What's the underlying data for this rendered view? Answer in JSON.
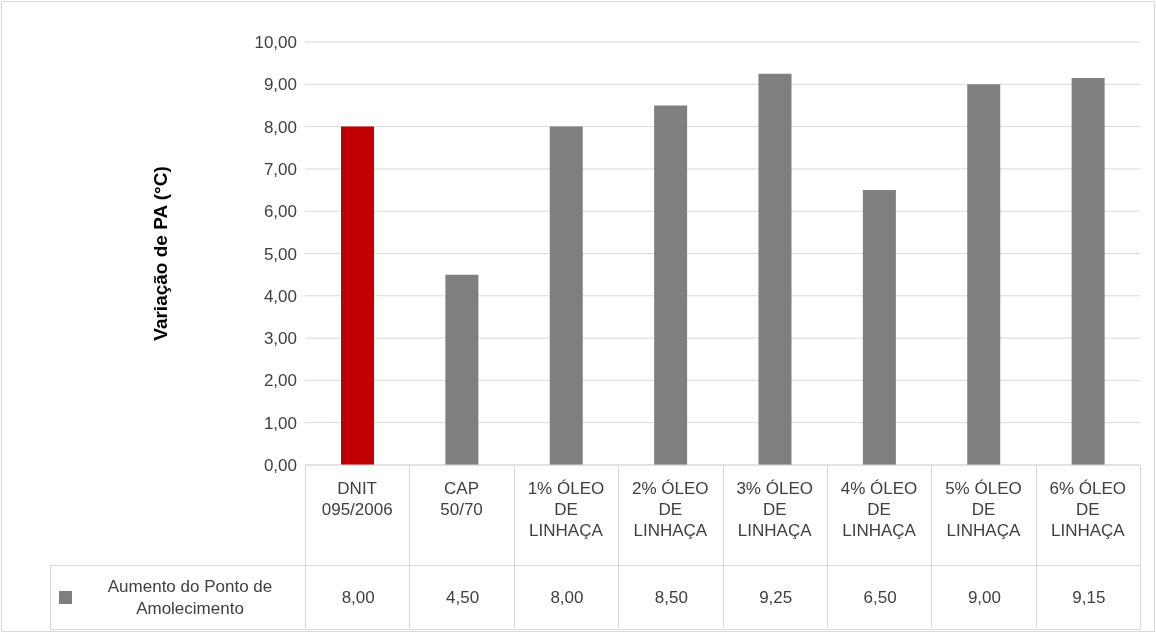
{
  "chart_data": {
    "type": "bar",
    "ylabel": "Variação de PA (°C)",
    "categories": [
      "DNIT 095/2006",
      "CAP 50/70",
      "1% ÓLEO DE LINHAÇA",
      "2% ÓLEO DE LINHAÇA",
      "3% ÓLEO DE LINHAÇA",
      "4% ÓLEO DE LINHAÇA",
      "5% ÓLEO DE LINHAÇA",
      "6% ÓLEO DE LINHAÇA"
    ],
    "series": [
      {
        "name": "Aumento do Ponto de Amolecimento",
        "color": "#7f7f7f",
        "colors": [
          "#c00000",
          "#7f7f7f",
          "#7f7f7f",
          "#7f7f7f",
          "#7f7f7f",
          "#7f7f7f",
          "#7f7f7f",
          "#7f7f7f"
        ],
        "values": [
          8.0,
          4.5,
          8.0,
          8.5,
          9.25,
          6.5,
          9.0,
          9.15
        ]
      }
    ],
    "ylim": [
      0,
      10
    ],
    "yticks": [
      {
        "value": 0,
        "label": "0,00"
      },
      {
        "value": 1,
        "label": "1,00"
      },
      {
        "value": 2,
        "label": "2,00"
      },
      {
        "value": 3,
        "label": "3,00"
      },
      {
        "value": 4,
        "label": "4,00"
      },
      {
        "value": 5,
        "label": "5,00"
      },
      {
        "value": 6,
        "label": "6,00"
      },
      {
        "value": 7,
        "label": "7,00"
      },
      {
        "value": 8,
        "label": "8,00"
      },
      {
        "value": 9,
        "label": "9,00"
      },
      {
        "value": 10,
        "label": "10,00"
      }
    ],
    "value_labels": [
      "8,00",
      "4,50",
      "8,00",
      "8,50",
      "9,25",
      "6,50",
      "9,00",
      "9,15"
    ],
    "grid": "y",
    "legend": "bottom"
  }
}
